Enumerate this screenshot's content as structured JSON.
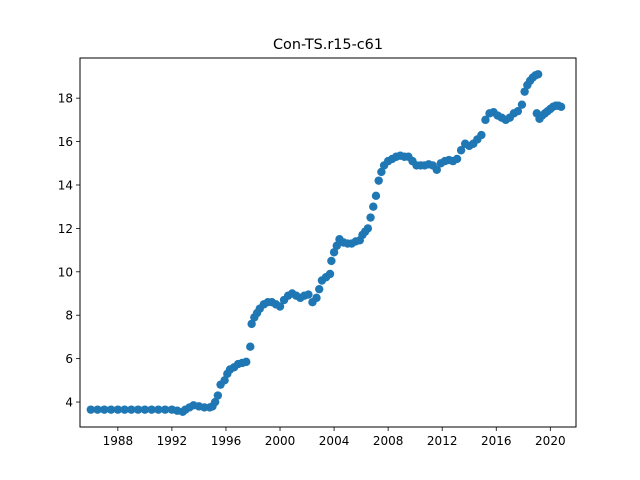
{
  "chart_data": {
    "type": "scatter",
    "title": "Con-TS.r15-c61",
    "xlabel": "",
    "ylabel": "",
    "xlim": [
      1985.2,
      2021.9
    ],
    "ylim": [
      2.85,
      19.85
    ],
    "x_ticks": [
      1988,
      1992,
      1996,
      2000,
      2004,
      2008,
      2012,
      2016,
      2020
    ],
    "y_ticks": [
      4,
      6,
      8,
      10,
      12,
      14,
      16,
      18
    ],
    "grid": false,
    "legend": "none",
    "marker_color": "#1f77b4",
    "series": [
      {
        "points": [
          [
            1986.0,
            3.65
          ],
          [
            1986.5,
            3.65
          ],
          [
            1987.0,
            3.65
          ],
          [
            1987.5,
            3.65
          ],
          [
            1988.0,
            3.65
          ],
          [
            1988.5,
            3.65
          ],
          [
            1989.0,
            3.65
          ],
          [
            1989.5,
            3.65
          ],
          [
            1990.0,
            3.65
          ],
          [
            1990.5,
            3.65
          ],
          [
            1991.0,
            3.65
          ],
          [
            1991.5,
            3.65
          ],
          [
            1992.0,
            3.65
          ],
          [
            1992.4,
            3.6
          ],
          [
            1992.8,
            3.55
          ],
          [
            1993.0,
            3.65
          ],
          [
            1993.3,
            3.75
          ],
          [
            1993.6,
            3.85
          ],
          [
            1994.0,
            3.8
          ],
          [
            1994.4,
            3.75
          ],
          [
            1994.8,
            3.75
          ],
          [
            1995.0,
            3.8
          ],
          [
            1995.2,
            4.0
          ],
          [
            1995.4,
            4.3
          ],
          [
            1995.6,
            4.8
          ],
          [
            1995.9,
            5.0
          ],
          [
            1996.1,
            5.3
          ],
          [
            1996.3,
            5.5
          ],
          [
            1996.6,
            5.6
          ],
          [
            1996.9,
            5.75
          ],
          [
            1997.2,
            5.8
          ],
          [
            1997.5,
            5.85
          ],
          [
            1997.8,
            6.55
          ],
          [
            1997.9,
            7.6
          ],
          [
            1998.1,
            7.9
          ],
          [
            1998.3,
            8.1
          ],
          [
            1998.5,
            8.3
          ],
          [
            1998.8,
            8.5
          ],
          [
            1999.1,
            8.6
          ],
          [
            1999.4,
            8.6
          ],
          [
            1999.7,
            8.5
          ],
          [
            2000.0,
            8.4
          ],
          [
            2000.3,
            8.7
          ],
          [
            2000.6,
            8.9
          ],
          [
            2000.9,
            9.0
          ],
          [
            2001.2,
            8.9
          ],
          [
            2001.5,
            8.8
          ],
          [
            2001.8,
            8.9
          ],
          [
            2002.1,
            8.95
          ],
          [
            2002.4,
            8.6
          ],
          [
            2002.7,
            8.8
          ],
          [
            2002.9,
            9.2
          ],
          [
            2003.1,
            9.6
          ],
          [
            2003.4,
            9.75
          ],
          [
            2003.7,
            9.9
          ],
          [
            2003.8,
            10.5
          ],
          [
            2004.0,
            10.9
          ],
          [
            2004.2,
            11.2
          ],
          [
            2004.4,
            11.5
          ],
          [
            2004.7,
            11.35
          ],
          [
            2005.0,
            11.3
          ],
          [
            2005.3,
            11.3
          ],
          [
            2005.6,
            11.4
          ],
          [
            2005.9,
            11.45
          ],
          [
            2006.1,
            11.7
          ],
          [
            2006.3,
            11.85
          ],
          [
            2006.5,
            12.0
          ],
          [
            2006.7,
            12.5
          ],
          [
            2006.9,
            13.0
          ],
          [
            2007.1,
            13.5
          ],
          [
            2007.3,
            14.2
          ],
          [
            2007.5,
            14.6
          ],
          [
            2007.7,
            14.9
          ],
          [
            2008.0,
            15.1
          ],
          [
            2008.3,
            15.2
          ],
          [
            2008.6,
            15.3
          ],
          [
            2008.9,
            15.35
          ],
          [
            2009.2,
            15.3
          ],
          [
            2009.5,
            15.3
          ],
          [
            2009.8,
            15.1
          ],
          [
            2010.1,
            14.9
          ],
          [
            2010.4,
            14.9
          ],
          [
            2010.7,
            14.9
          ],
          [
            2011.0,
            14.95
          ],
          [
            2011.3,
            14.9
          ],
          [
            2011.6,
            14.7
          ],
          [
            2011.9,
            15.0
          ],
          [
            2012.2,
            15.1
          ],
          [
            2012.5,
            15.15
          ],
          [
            2012.8,
            15.1
          ],
          [
            2013.1,
            15.2
          ],
          [
            2013.4,
            15.6
          ],
          [
            2013.7,
            15.9
          ],
          [
            2014.0,
            15.8
          ],
          [
            2014.3,
            15.9
          ],
          [
            2014.6,
            16.1
          ],
          [
            2014.9,
            16.3
          ],
          [
            2015.2,
            17.0
          ],
          [
            2015.5,
            17.3
          ],
          [
            2015.8,
            17.35
          ],
          [
            2016.1,
            17.2
          ],
          [
            2016.4,
            17.1
          ],
          [
            2016.7,
            17.0
          ],
          [
            2017.0,
            17.1
          ],
          [
            2017.3,
            17.3
          ],
          [
            2017.6,
            17.4
          ],
          [
            2017.9,
            17.7
          ],
          [
            2018.1,
            18.3
          ],
          [
            2018.3,
            18.6
          ],
          [
            2018.5,
            18.8
          ],
          [
            2018.7,
            18.95
          ],
          [
            2018.9,
            19.05
          ],
          [
            2019.1,
            19.1
          ],
          [
            2019.0,
            17.3
          ],
          [
            2019.2,
            17.05
          ],
          [
            2019.4,
            17.2
          ],
          [
            2019.6,
            17.3
          ],
          [
            2019.8,
            17.4
          ],
          [
            2020.0,
            17.5
          ],
          [
            2020.2,
            17.6
          ],
          [
            2020.4,
            17.65
          ],
          [
            2020.6,
            17.65
          ],
          [
            2020.8,
            17.6
          ]
        ]
      }
    ]
  }
}
